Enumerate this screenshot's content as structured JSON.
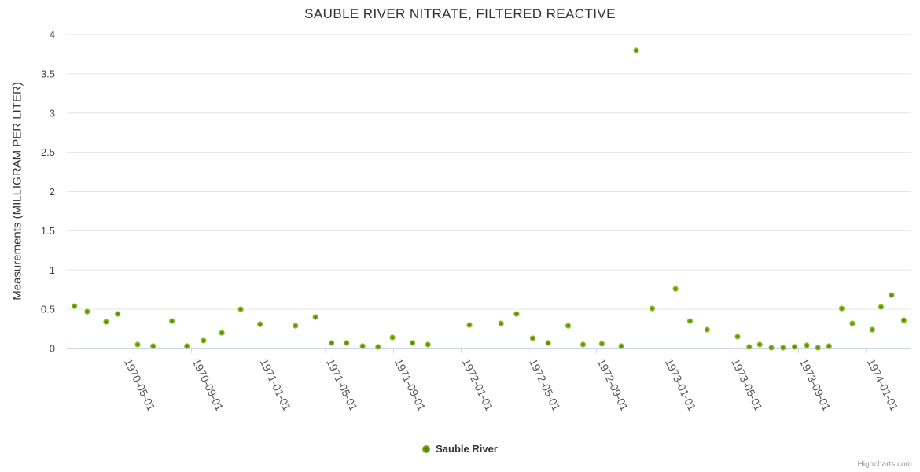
{
  "chart": {
    "title": "SAUBLE RIVER NITRATE, FILTERED REACTIVE",
    "y_axis_title": "Measurements (MILLIGRAM PER LITER)",
    "legend_label": "Sauble River",
    "credits": "Highcharts.com"
  },
  "colors": {
    "point_outer": "#8bbc21",
    "point_inner": "#4d7a05",
    "grid": "#e6e6e6",
    "axis_line": "#ccd6eb",
    "title_text": "#333333",
    "label_text": "#555555",
    "credits_text": "#999aa2"
  },
  "chart_data": {
    "type": "scatter",
    "title": "SAUBLE RIVER NITRATE, FILTERED REACTIVE",
    "xlabel": "",
    "ylabel": "Measurements (MILLIGRAM PER LITER)",
    "ylim": [
      0,
      4
    ],
    "y_ticks": [
      0,
      0.5,
      1,
      1.5,
      2,
      2.5,
      3,
      3.5,
      4
    ],
    "x_tick_labels": [
      "1970-05-01",
      "1970-09-01",
      "1971-01-01",
      "1971-05-01",
      "1971-09-01",
      "1972-01-01",
      "1972-05-01",
      "1972-09-01",
      "1973-01-01",
      "1973-05-01",
      "1973-09-01",
      "1974-01-01"
    ],
    "grid": true,
    "legend_position": "bottom-center",
    "series": [
      {
        "name": "Sauble River",
        "color": "#8bbc21",
        "points": [
          [
            "1970-02-02",
            0.54
          ],
          [
            "1970-02-25",
            0.47
          ],
          [
            "1970-03-31",
            0.34
          ],
          [
            "1970-04-21",
            0.44
          ],
          [
            "1970-05-27",
            0.05
          ],
          [
            "1970-06-24",
            0.03
          ],
          [
            "1970-07-28",
            0.35
          ],
          [
            "1970-08-24",
            0.03
          ],
          [
            "1970-09-23",
            0.1
          ],
          [
            "1970-10-26",
            0.2
          ],
          [
            "1970-11-29",
            0.5
          ],
          [
            "1971-01-03",
            0.31
          ],
          [
            "1971-03-08",
            0.29
          ],
          [
            "1971-04-13",
            0.4
          ],
          [
            "1971-05-12",
            0.07
          ],
          [
            "1971-06-08",
            0.07
          ],
          [
            "1971-07-07",
            0.03
          ],
          [
            "1971-08-04",
            0.02
          ],
          [
            "1971-08-30",
            0.14
          ],
          [
            "1971-10-05",
            0.07
          ],
          [
            "1971-11-02",
            0.05
          ],
          [
            "1972-01-16",
            0.3
          ],
          [
            "1972-03-13",
            0.32
          ],
          [
            "1972-04-10",
            0.44
          ],
          [
            "1972-05-09",
            0.13
          ],
          [
            "1972-06-06",
            0.07
          ],
          [
            "1972-07-12",
            0.29
          ],
          [
            "1972-08-08",
            0.05
          ],
          [
            "1972-09-11",
            0.06
          ],
          [
            "1972-10-16",
            0.03
          ],
          [
            "1972-11-12",
            3.8
          ],
          [
            "1972-12-11",
            0.51
          ],
          [
            "1973-01-22",
            0.76
          ],
          [
            "1973-02-17",
            0.35
          ],
          [
            "1973-03-20",
            0.24
          ],
          [
            "1973-05-14",
            0.15
          ],
          [
            "1973-06-04",
            0.02
          ],
          [
            "1973-06-23",
            0.05
          ],
          [
            "1973-07-14",
            0.01
          ],
          [
            "1973-08-04",
            0.01
          ],
          [
            "1973-08-25",
            0.02
          ],
          [
            "1973-09-16",
            0.04
          ],
          [
            "1973-10-06",
            0.01
          ],
          [
            "1973-10-26",
            0.03
          ],
          [
            "1973-11-18",
            0.51
          ],
          [
            "1973-12-07",
            0.32
          ],
          [
            "1974-01-12",
            0.24
          ],
          [
            "1974-01-28",
            0.53
          ],
          [
            "1974-02-16",
            0.68
          ],
          [
            "1974-03-10",
            0.36
          ]
        ]
      }
    ]
  }
}
